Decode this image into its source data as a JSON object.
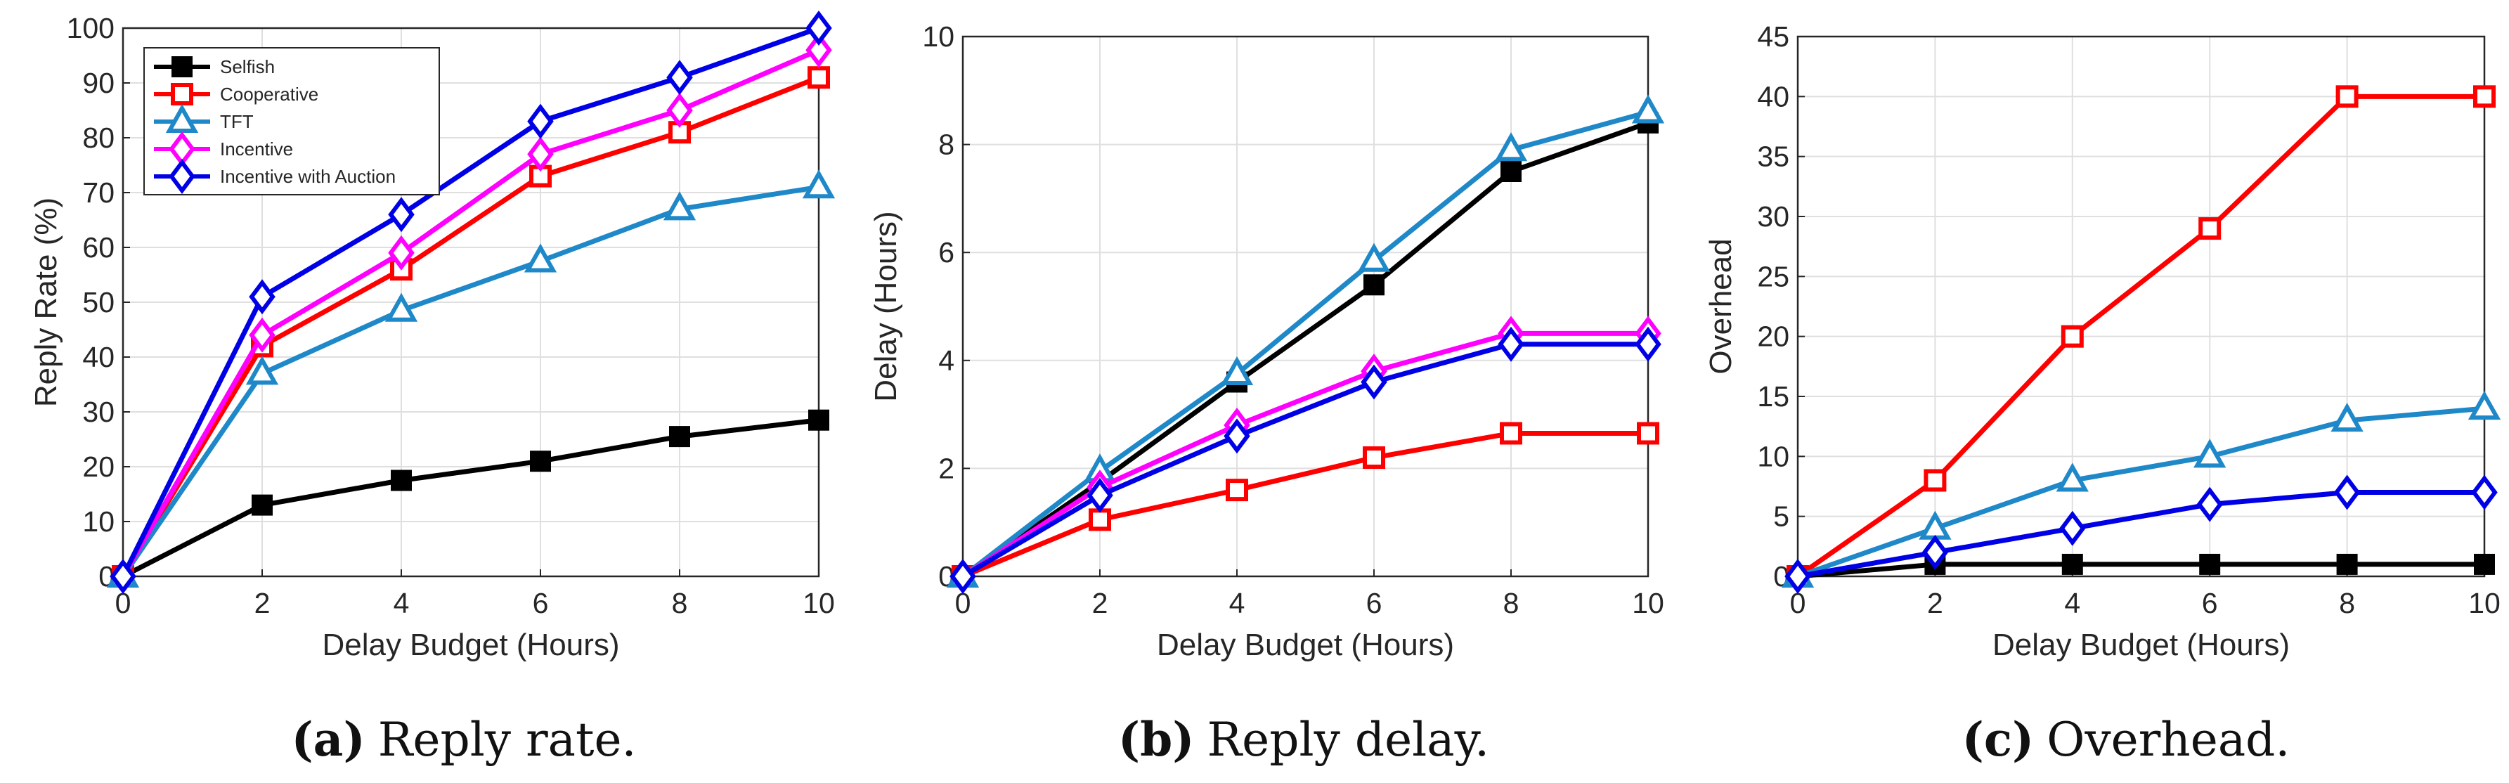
{
  "colors": {
    "Selfish": "#000000",
    "Cooperative": "#ff0000",
    "TFT": "#1e88c8",
    "Incentive": "#ff00ff",
    "Incentive with Auction": "#0000e6"
  },
  "markers": {
    "Selfish": "square-filled",
    "Cooperative": "square",
    "TFT": "triangle",
    "Incentive": "diamond",
    "Incentive with Auction": "diamond"
  },
  "chart_data": [
    {
      "type": "line",
      "caption": {
        "label": "(a)",
        "text": "Reply rate."
      },
      "xlabel": "Delay Budget (Hours)",
      "ylabel": "Reply Rate (%)",
      "xlim": [
        0,
        10
      ],
      "ylim": [
        0,
        100
      ],
      "xticks": [
        "0",
        "2",
        "4",
        "6",
        "8",
        "10"
      ],
      "yticks": [
        "0",
        "10",
        "20",
        "30",
        "40",
        "50",
        "60",
        "70",
        "80",
        "90",
        "100"
      ],
      "grid": true,
      "legend_position": "top-left",
      "legend": [
        "Selfish",
        "Cooperative",
        "TFT",
        "Incentive",
        "Incentive with Auction"
      ],
      "x": [
        0,
        2,
        4,
        6,
        8,
        10
      ],
      "series": [
        {
          "name": "Selfish",
          "values": [
            0,
            13,
            17.5,
            21,
            25.5,
            28.5
          ]
        },
        {
          "name": "Cooperative",
          "values": [
            0,
            42,
            56,
            73,
            81,
            91
          ]
        },
        {
          "name": "TFT",
          "values": [
            0,
            37,
            48.5,
            57.5,
            67,
            71
          ]
        },
        {
          "name": "Incentive",
          "values": [
            0,
            44,
            59,
            77,
            85,
            96
          ]
        },
        {
          "name": "Incentive with Auction",
          "values": [
            0,
            51,
            66,
            83,
            91,
            100
          ]
        }
      ]
    },
    {
      "type": "line",
      "caption": {
        "label": "(b)",
        "text": "Reply delay."
      },
      "xlabel": "Delay Budget (Hours)",
      "ylabel": "Delay (Hours)",
      "xlim": [
        0,
        10
      ],
      "ylim": [
        0,
        10
      ],
      "xticks": [
        "0",
        "2",
        "4",
        "6",
        "8",
        "10"
      ],
      "yticks": [
        "0",
        "2",
        "4",
        "6",
        "8",
        "10"
      ],
      "grid": true,
      "x": [
        0,
        2,
        4,
        6,
        8,
        10
      ],
      "series": [
        {
          "name": "Selfish",
          "values": [
            0,
            1.75,
            3.6,
            5.4,
            7.5,
            8.4
          ]
        },
        {
          "name": "Cooperative",
          "values": [
            0,
            1.05,
            1.6,
            2.2,
            2.65,
            2.65
          ]
        },
        {
          "name": "TFT",
          "values": [
            0,
            1.95,
            3.75,
            5.85,
            7.9,
            8.6
          ]
        },
        {
          "name": "Incentive",
          "values": [
            0,
            1.65,
            2.8,
            3.8,
            4.5,
            4.5
          ]
        },
        {
          "name": "Incentive with Auction",
          "values": [
            0,
            1.5,
            2.6,
            3.6,
            4.3,
            4.3
          ]
        }
      ]
    },
    {
      "type": "line",
      "caption": {
        "label": "(c)",
        "text": "Overhead."
      },
      "xlabel": "Delay Budget (Hours)",
      "ylabel": "Overhead",
      "xlim": [
        0,
        10
      ],
      "ylim": [
        0,
        45
      ],
      "xticks": [
        "0",
        "2",
        "4",
        "6",
        "8",
        "10"
      ],
      "yticks": [
        "0",
        "5",
        "10",
        "15",
        "20",
        "25",
        "30",
        "35",
        "40",
        "45"
      ],
      "grid": true,
      "x": [
        0,
        2,
        4,
        6,
        8,
        10
      ],
      "series": [
        {
          "name": "Selfish",
          "values": [
            0,
            1,
            1,
            1,
            1,
            1
          ]
        },
        {
          "name": "Cooperative",
          "values": [
            0,
            8,
            20,
            29,
            40,
            40
          ]
        },
        {
          "name": "TFT",
          "values": [
            0,
            4,
            8,
            10,
            13,
            14
          ]
        },
        {
          "name": "Incentive with Auction",
          "values": [
            0,
            2,
            4,
            6,
            7,
            7
          ]
        }
      ]
    }
  ]
}
